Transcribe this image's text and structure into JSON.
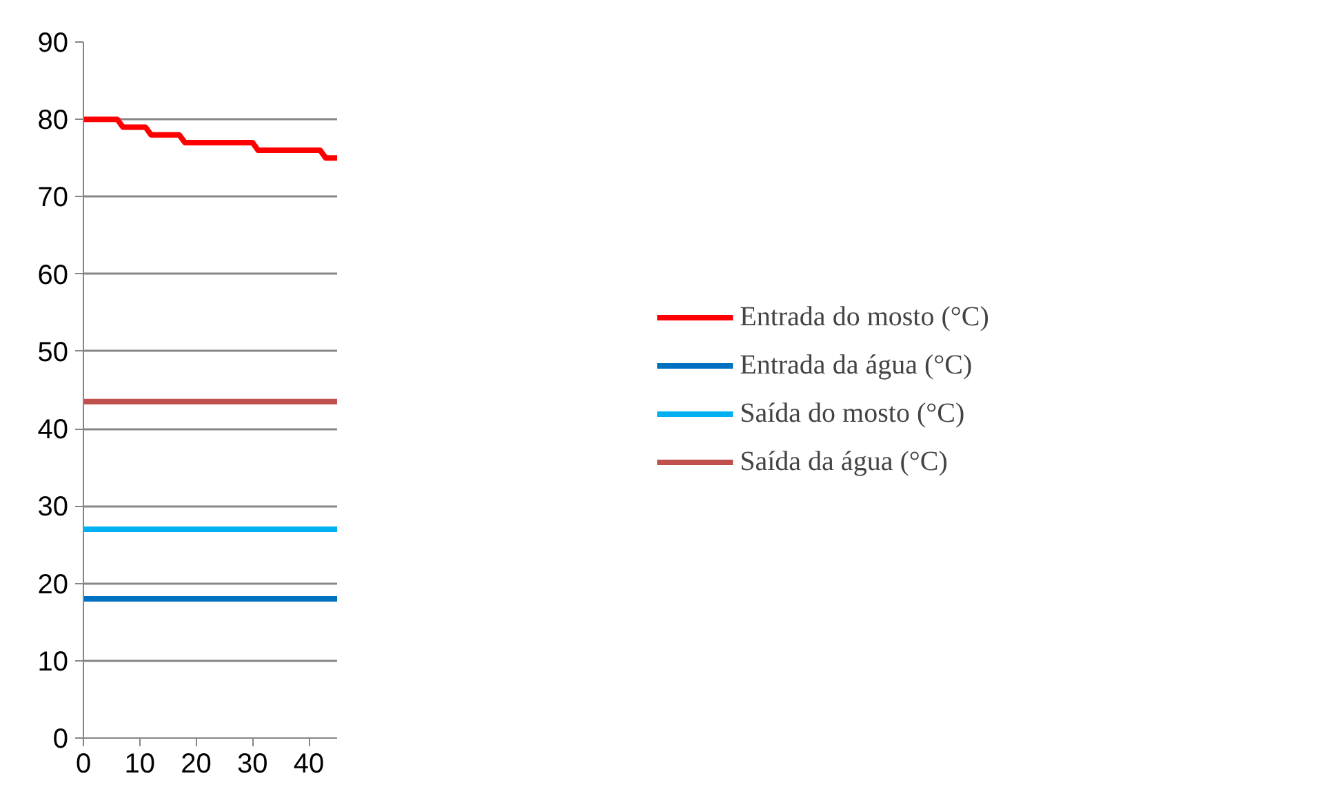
{
  "chart_data": {
    "type": "line",
    "x": [
      0,
      1,
      2,
      3,
      4,
      5,
      6,
      7,
      8,
      9,
      10,
      11,
      12,
      13,
      14,
      15,
      16,
      17,
      18,
      19,
      20,
      21,
      22,
      23,
      24,
      25,
      26,
      27,
      28,
      29,
      30,
      31,
      32,
      33,
      34,
      35,
      36,
      37,
      38,
      39,
      40,
      41,
      42,
      43,
      44,
      45
    ],
    "series": [
      {
        "name": "Entrada do mosto (°C)",
        "color": "#ff0000",
        "values": [
          80,
          80,
          80,
          80,
          80,
          80,
          80,
          79,
          79,
          79,
          79,
          79,
          78,
          78,
          78,
          78,
          78,
          78,
          77,
          77,
          77,
          77,
          77,
          77,
          77,
          77,
          77,
          77,
          77,
          77,
          77,
          76,
          76,
          76,
          76,
          76,
          76,
          76,
          76,
          76,
          76,
          76,
          76,
          75,
          75,
          75
        ]
      },
      {
        "name": "Entrada da água (°C)",
        "color": "#0070c0",
        "values": [
          18,
          18,
          18,
          18,
          18,
          18,
          18,
          18,
          18,
          18,
          18,
          18,
          18,
          18,
          18,
          18,
          18,
          18,
          18,
          18,
          18,
          18,
          18,
          18,
          18,
          18,
          18,
          18,
          18,
          18,
          18,
          18,
          18,
          18,
          18,
          18,
          18,
          18,
          18,
          18,
          18,
          18,
          18,
          18,
          18,
          18
        ]
      },
      {
        "name": "Saída do mosto (°C)",
        "color": "#00b0f0",
        "values": [
          27,
          27,
          27,
          27,
          27,
          27,
          27,
          27,
          27,
          27,
          27,
          27,
          27,
          27,
          27,
          27,
          27,
          27,
          27,
          27,
          27,
          27,
          27,
          27,
          27,
          27,
          27,
          27,
          27,
          27,
          27,
          27,
          27,
          27,
          27,
          27,
          27,
          27,
          27,
          27,
          27,
          27,
          27,
          27,
          27,
          27
        ]
      },
      {
        "name": "Saída da água (°C)",
        "color": "#c0504d",
        "values": [
          43.5,
          43.5,
          43.5,
          43.5,
          43.5,
          43.5,
          43.5,
          43.5,
          43.5,
          43.5,
          43.5,
          43.5,
          43.5,
          43.5,
          43.5,
          43.5,
          43.5,
          43.5,
          43.5,
          43.5,
          43.5,
          43.5,
          43.5,
          43.5,
          43.5,
          43.5,
          43.5,
          43.5,
          43.5,
          43.5,
          43.5,
          43.5,
          43.5,
          43.5,
          43.5,
          43.5,
          43.5,
          43.5,
          43.5,
          43.5,
          43.5,
          43.5,
          43.5,
          43.5,
          43.5,
          43.5
        ]
      }
    ],
    "xlim": [
      0,
      45
    ],
    "xticks": [
      0,
      10,
      20,
      30,
      40
    ],
    "ylim": [
      0,
      90
    ],
    "yticks": [
      0,
      10,
      20,
      30,
      40,
      50,
      60,
      70,
      80,
      90
    ],
    "grid": "y",
    "legend": "right",
    "marker": "none",
    "line_style": "solid"
  }
}
